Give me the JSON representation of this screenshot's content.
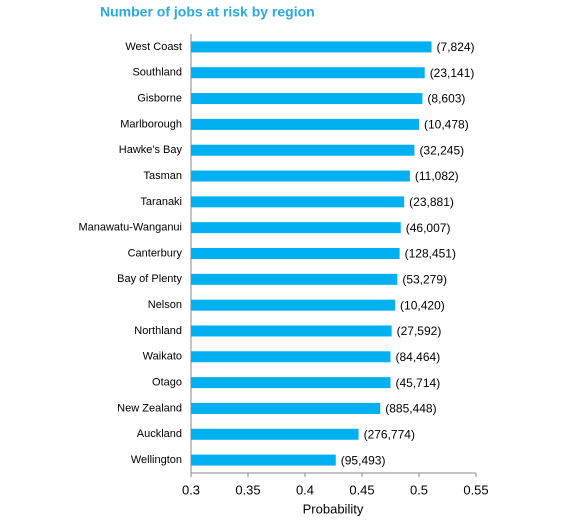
{
  "chart_data": {
    "type": "bar",
    "orientation": "horizontal",
    "title": "Number of jobs at risk by region",
    "x_label": "Probability",
    "categories": [
      "West Coast",
      "Southland",
      "Gisborne",
      "Marlborough",
      "Hawke's Bay",
      "Tasman",
      "Taranaki",
      "Manawatu-Wanganui",
      "Canterbury",
      "Bay of Plenty",
      "Nelson",
      "Northland",
      "Waikato",
      "Otago",
      "New Zealand",
      "Auckland",
      "Wellington"
    ],
    "values": [
      0.511,
      0.505,
      0.503,
      0.5,
      0.496,
      0.492,
      0.487,
      0.484,
      0.483,
      0.481,
      0.479,
      0.476,
      0.475,
      0.475,
      0.466,
      0.447,
      0.427
    ],
    "jobs_labels": [
      "(7,824)",
      "(23,141)",
      "(8,603)",
      "(10,478)",
      "(32,245)",
      "(11,082)",
      "(23,881)",
      "(46,007)",
      "(128,451)",
      "(53,279)",
      "(10,420)",
      "(27,592)",
      "(84,464)",
      "(45,714)",
      "(885,448)",
      "(276,774)",
      "(95,493)"
    ],
    "color": "#00b0f0",
    "xlim": [
      0.3,
      0.55
    ],
    "xticks": [
      0.3,
      0.35,
      0.4,
      0.45,
      0.5,
      0.55
    ],
    "grid": false
  }
}
